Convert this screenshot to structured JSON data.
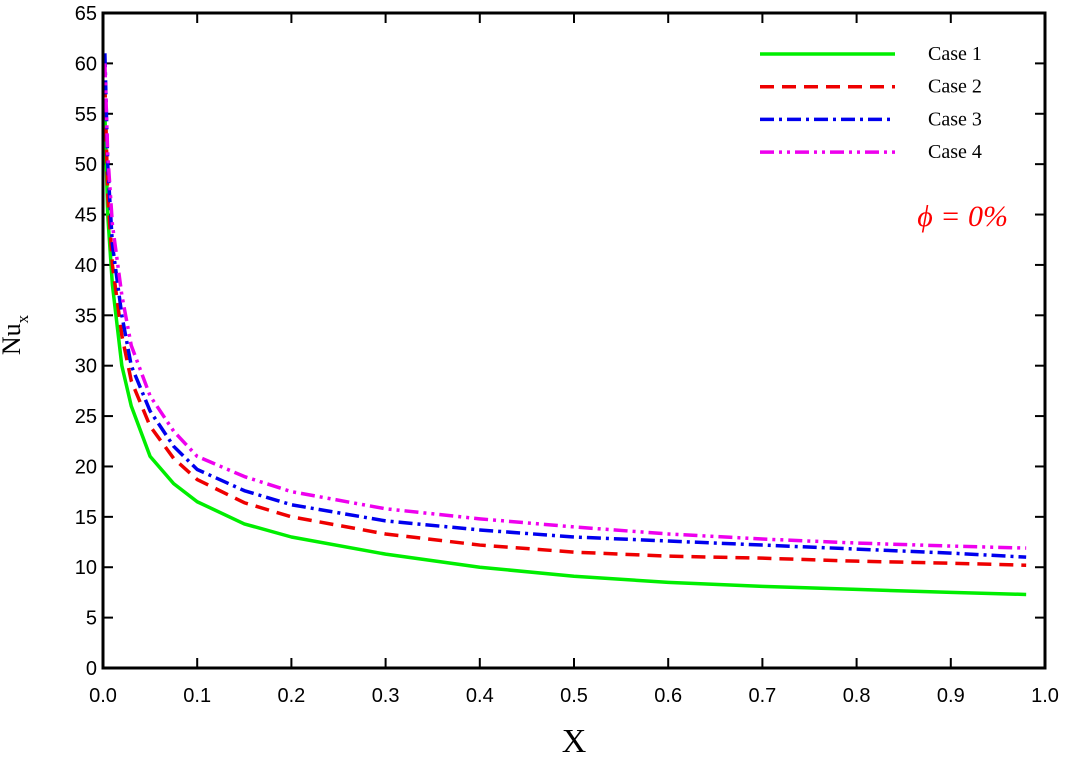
{
  "chart_data": {
    "type": "line",
    "x_label": "X",
    "y_label": {
      "text": "Nu",
      "subscript": "x"
    },
    "annotation": {
      "text": "ϕ = 0%",
      "color": "#ff0000"
    },
    "x": [
      0.002,
      0.005,
      0.01,
      0.02,
      0.03,
      0.05,
      0.075,
      0.1,
      0.15,
      0.2,
      0.3,
      0.4,
      0.5,
      0.6,
      0.7,
      0.8,
      0.9,
      0.98
    ],
    "series": [
      {
        "name": "Case 1",
        "color": "#00ee00",
        "dash": "none",
        "values": [
          55,
          45,
          38,
          30,
          26,
          21,
          18.3,
          16.5,
          14.3,
          13,
          11.3,
          10,
          9.1,
          8.5,
          8.1,
          7.8,
          7.5,
          7.3
        ]
      },
      {
        "name": "Case 2",
        "color": "#ee0000",
        "dash": "14 8",
        "values": [
          58,
          47,
          40,
          33,
          28.5,
          24,
          20.8,
          18.7,
          16.4,
          15,
          13.3,
          12.2,
          11.5,
          11.1,
          10.9,
          10.6,
          10.4,
          10.2
        ]
      },
      {
        "name": "Case 3",
        "color": "#0000ee",
        "dash": "14 5 3 5",
        "values": [
          61,
          50,
          42,
          35,
          30,
          25.5,
          22,
          19.7,
          17.6,
          16.2,
          14.6,
          13.7,
          13,
          12.6,
          12.2,
          11.8,
          11.4,
          11.0
        ]
      },
      {
        "name": "Case 4",
        "color": "#ee00ee",
        "dash": "14 5 3 5 3 5",
        "values": [
          60,
          51,
          44,
          37,
          32,
          27,
          23.5,
          21,
          19,
          17.5,
          15.8,
          14.8,
          14,
          13.3,
          12.8,
          12.4,
          12.1,
          11.9
        ]
      }
    ],
    "xlim": [
      0,
      1
    ],
    "xticks": [
      {
        "value": 0,
        "label": "0.0"
      },
      0.1,
      0.2,
      0.3,
      0.4,
      0.5,
      0.6,
      0.7,
      0.8,
      0.9,
      {
        "value": 1,
        "label": "1.0"
      }
    ],
    "ylim": [
      0,
      65
    ],
    "yticks": [
      0,
      5,
      10,
      15,
      20,
      25,
      30,
      35,
      40,
      45,
      50,
      55,
      60,
      65
    ],
    "legend": "top-right"
  }
}
